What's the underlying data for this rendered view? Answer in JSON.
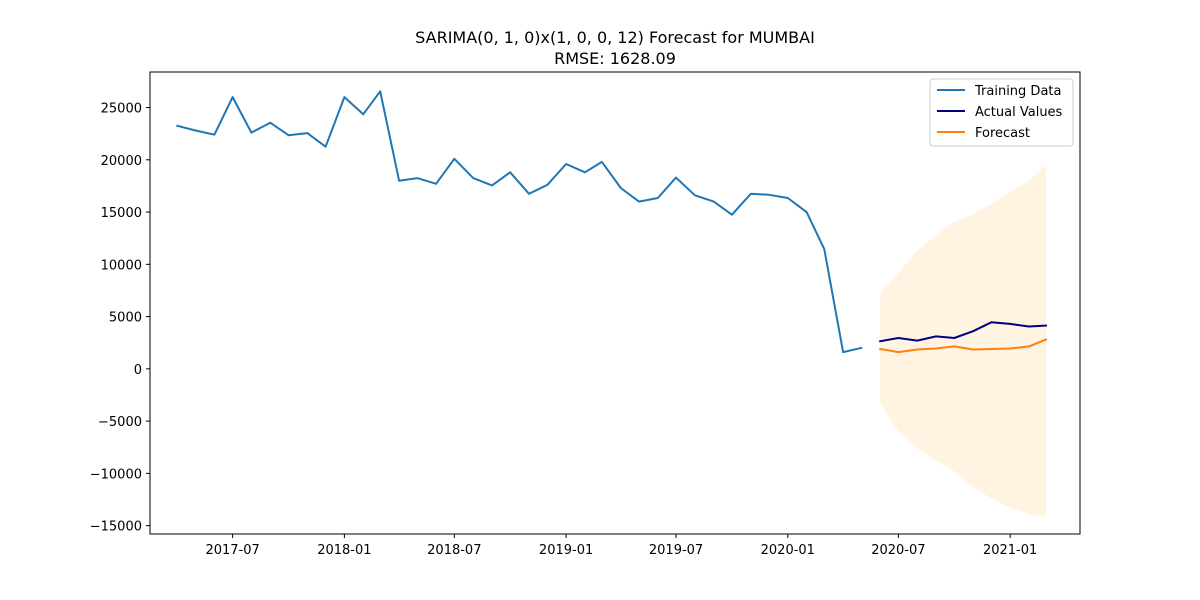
{
  "chart_data": {
    "type": "line",
    "title": "SARIMA(0, 1, 0)x(1, 0, 0, 12) Forecast for MUMBAI",
    "subtitle": "RMSE: 1628.09",
    "xlabel": "",
    "ylabel": "",
    "x_ticks": [
      "2017-07",
      "2018-01",
      "2018-07",
      "2019-01",
      "2019-07",
      "2020-01",
      "2020-07",
      "2021-01"
    ],
    "y_ticks": [
      25000,
      20000,
      15000,
      10000,
      5000,
      0,
      -5000,
      -10000,
      -15000
    ],
    "y_tick_labels": [
      "25000",
      "20000",
      "15000",
      "10000",
      "5000",
      "0",
      "−5000",
      "−10000",
      "−15000"
    ],
    "xlim": [
      "2017-02-15",
      "2021-04-26"
    ],
    "ylim": [
      -15800,
      28400
    ],
    "grid": false,
    "legend_position": "top-right",
    "series": [
      {
        "name": "Training Data",
        "color": "#1f77b4",
        "x": [
          "2017-04",
          "2017-05",
          "2017-06",
          "2017-07",
          "2017-08",
          "2017-09",
          "2017-10",
          "2017-11",
          "2017-12",
          "2018-01",
          "2018-02",
          "2018-03",
          "2018-04",
          "2018-05",
          "2018-06",
          "2018-07",
          "2018-08",
          "2018-09",
          "2018-10",
          "2018-11",
          "2018-12",
          "2019-01",
          "2019-02",
          "2019-03",
          "2019-04",
          "2019-05",
          "2019-06",
          "2019-07",
          "2019-08",
          "2019-09",
          "2019-10",
          "2019-11",
          "2019-12",
          "2020-01",
          "2020-02",
          "2020-03",
          "2020-04",
          "2020-05"
        ],
        "y": [
          23250,
          22800,
          22400,
          26000,
          22600,
          23550,
          22350,
          22550,
          21250,
          26000,
          24350,
          26550,
          18000,
          18250,
          17700,
          20100,
          18250,
          17550,
          18800,
          16750,
          17600,
          19600,
          18800,
          19800,
          17300,
          16000,
          16350,
          18300,
          16600,
          16000,
          14750,
          16750,
          16650,
          16350,
          15000,
          11450,
          1600,
          2000
        ]
      },
      {
        "name": "Actual Values",
        "color": "#000080",
        "x": [
          "2020-06",
          "2020-07",
          "2020-08",
          "2020-09",
          "2020-10",
          "2020-11",
          "2020-12",
          "2021-01",
          "2021-02",
          "2021-03"
        ],
        "y": [
          2650,
          2950,
          2700,
          3100,
          2950,
          3600,
          4450,
          4300,
          4050,
          4150
        ]
      },
      {
        "name": "Forecast",
        "color": "#ff7f0e",
        "x": [
          "2020-06",
          "2020-07",
          "2020-08",
          "2020-09",
          "2020-10",
          "2020-11",
          "2020-12",
          "2021-01",
          "2021-02",
          "2021-03"
        ],
        "y": [
          1900,
          1600,
          1850,
          1950,
          2150,
          1850,
          1900,
          1950,
          2150,
          2800
        ]
      }
    ],
    "confidence_band": {
      "color": "#fff4e2",
      "x": [
        "2020-06",
        "2020-07",
        "2020-08",
        "2020-09",
        "2020-10",
        "2020-11",
        "2020-12",
        "2021-01",
        "2021-02",
        "2021-03"
      ],
      "upper": [
        7200,
        9200,
        11300,
        12800,
        14100,
        14800,
        15800,
        16900,
        18000,
        19500
      ],
      "lower": [
        -3400,
        -6000,
        -7600,
        -8800,
        -9800,
        -11300,
        -12400,
        -13300,
        -13900,
        -14200
      ]
    }
  }
}
